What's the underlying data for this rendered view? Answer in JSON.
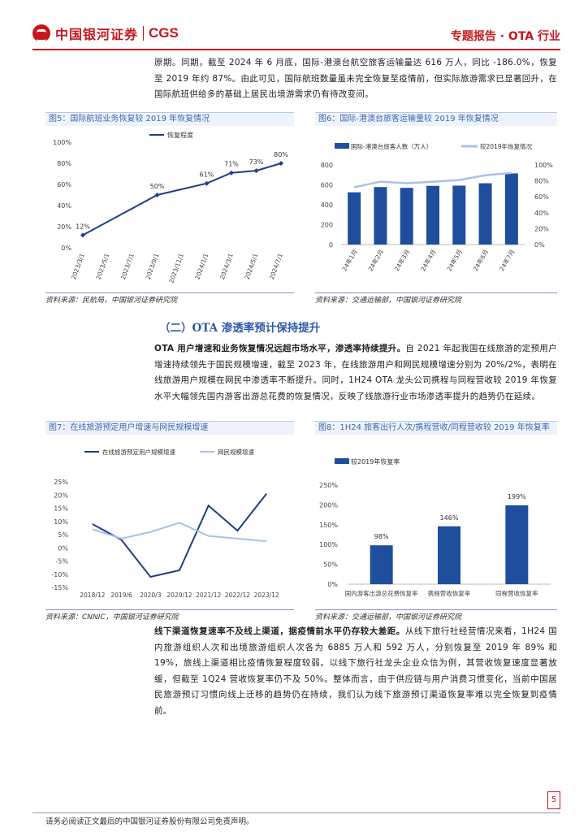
{
  "header": {
    "logo_cn": "中国银河证券",
    "logo_en": "CGS",
    "report_type": "专题报告 · OTA 行业"
  },
  "intro_paragraph": "原期。同期，截至 2024 年 6 月底，国际-港澳台航空旅客运输量达 616 万人，同比 -186.0%，恢复至 2019 年约 87%。由此可见，国际航班数量虽未完全恢复至疫情前，但实际旅游需求已显著回升，在国际航班供给多的基础上居民出境游需求仍有待改变间。",
  "figures": {
    "fig5": {
      "title": "图5：国际航班业务恢复较 2019 年恢复情况",
      "source": "资料来源：民航局，中国银河证券研究院"
    },
    "fig6": {
      "title": "图6：国际-港澳台旅客运输量较 2019 年恢复情况",
      "source": "资料来源：交通运输部，中国银河证券研究院"
    },
    "fig7": {
      "title": "图7：在线旅游预定用户增速与网民规模增速",
      "source": "资料来源：CNNIC，中国银河证券研究院"
    },
    "fig8": {
      "title": "图8：1H24 旅客出行人次/携程营收/同程营收较 2019 年恢复率",
      "source": "资料来源：交通运输部，中国银河证券研究院"
    }
  },
  "section2": {
    "title": "（二）OTA 渗透率预计保持提升",
    "para_bold": "OTA 用户增速和业务恢复情况远超市场水平，渗透率持续提升。",
    "para_rest": "自 2021 年起我国在线旅游的定预用户增速持续领先于国民规模增速，截至 2023 年，在线旅游用户和网民规模增速分别为 20%/2%，表明在线旅游用户规模在网民中渗透率不断提升。同时，1H24 OTA 龙头公司携程与同程营收较 2019 年恢复水平大幅领先国内游客出游总花费的恢复情况，反映了线旅游行业市场渗透率提升的趋势仍在延续。",
    "para2_bold": "线下渠道恢复速率不及线上渠道，据疫情前水平仍存较大差距。",
    "para2_rest": "从线下旅行社经营情况来看，1H24 国内旅游组织人次和出境旅游组织人次各为 6885 万人和 592 万人，分别恢复至 2019 年 89% 和 19%，旅线上渠道相比疫情恢复程度较弱。以线下旅行社龙头企业众信为例，其营收恢复速度显著放缓，但截至 1Q24 营收恢复率仍不及 50%。整体而言，由于供应链与用户消费习惯变化，当前中国居民旅游预订习惯向线上迁移的趋势仍在持续，我们认为线下旅游预订渠道恢复率难以完全恢复到疫情前。"
  },
  "footer": {
    "disclaimer": "请务必阅读正文最后的中国银河证券股份有限公司免责声明。",
    "page": "5"
  },
  "chart_data": [
    {
      "type": "line",
      "legend": [
        "恢复程度"
      ],
      "categories": [
        "2023/3/1",
        "2023/5/1",
        "2023/7/1",
        "2023/9/1",
        "2023/11/1",
        "2024/1/1",
        "2024/3/1",
        "2024/5/1",
        "2024/7/1"
      ],
      "series": [
        {
          "name": "恢复程度",
          "values": [
            12,
            null,
            null,
            50,
            null,
            61,
            71,
            73,
            80
          ]
        }
      ],
      "data_labels": [
        "12%",
        "50%",
        "61%",
        "71%",
        "73%",
        "80%"
      ],
      "ylim": [
        0,
        100
      ],
      "yticks": [
        "0%",
        "20%",
        "40%",
        "60%",
        "80%",
        "100%"
      ],
      "color": "#1f3d8a"
    },
    {
      "type": "bar",
      "categories": [
        "24年1月",
        "24年2月",
        "24年3月",
        "24年4月",
        "24年5月",
        "24年6月",
        "24年7月"
      ],
      "series": [
        {
          "name": "国际-港澳台旅客人数（万人）",
          "type": "bar",
          "values": [
            525,
            578,
            570,
            590,
            592,
            616,
            715
          ]
        },
        {
          "name": "较2019年恢复情况",
          "type": "line",
          "values": [
            72,
            79,
            77,
            79,
            81,
            87,
            90
          ]
        }
      ],
      "ylim_left": [
        0,
        800
      ],
      "yticks_left": [
        "0",
        "200",
        "400",
        "600",
        "800"
      ],
      "ylim_right": [
        0,
        100
      ],
      "yticks_right": [
        "0%",
        "20%",
        "40%",
        "60%",
        "80%",
        "100%"
      ],
      "colors": [
        "#1f4e9c",
        "#a9c1ea"
      ]
    },
    {
      "type": "line",
      "categories": [
        "2018/12",
        "2019/6",
        "2020/3",
        "2020/12",
        "2021/12",
        "2022/12",
        "2023/12"
      ],
      "series": [
        {
          "name": "在线旅游预定用户规模增速",
          "values": [
            9,
            3,
            -11,
            -8.5,
            16,
            6.5,
            20.5
          ]
        },
        {
          "name": "网民规模增速",
          "values": [
            7,
            3.5,
            6,
            9.5,
            4.5,
            3.5,
            2.5
          ]
        }
      ],
      "ylim": [
        -15,
        25
      ],
      "yticks": [
        "-15%",
        "-10%",
        "-5%",
        "0%",
        "5%",
        "10%",
        "15%",
        "20%",
        "25%"
      ],
      "colors": [
        "#1f3d8a",
        "#a9c1ea"
      ]
    },
    {
      "type": "bar",
      "categories": [
        "国内游客出游总花费恢复率",
        "携程营收恢复率",
        "同程营收恢复率"
      ],
      "series": [
        {
          "name": "较2019年恢复率",
          "values": [
            98,
            146,
            199
          ]
        }
      ],
      "data_labels": [
        "98%",
        "146%",
        "199%"
      ],
      "ylim": [
        0,
        250
      ],
      "yticks": [
        "0%",
        "50%",
        "100%",
        "150%",
        "200%",
        "250%"
      ],
      "color": "#1f4e9c"
    }
  ]
}
